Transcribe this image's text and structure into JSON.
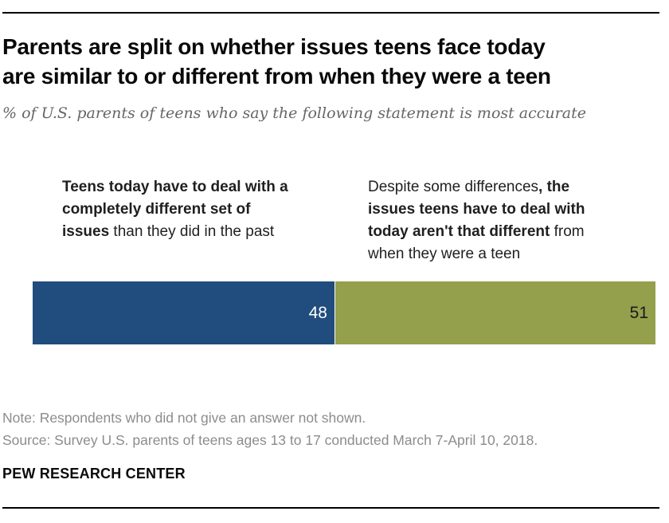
{
  "header": {
    "title_lines": [
      "Parents are split on whether issues teens face today",
      "are similar to or different from when they were a teen"
    ],
    "subtitle": "% of U.S. parents of teens who say the following statement is most accurate"
  },
  "chart_data": {
    "type": "bar",
    "variant": "horizontal-stacked-100",
    "title": "Parents are split on whether issues teens face today are similar to or different from when they were a teen",
    "subtitle": "% of U.S. parents of teens who say the following statement is most accurate",
    "categories": [
      "Teens today have to deal with a completely different set of issues than they did in the past",
      "Despite some differences, the issues teens have to deal with today aren't that different from when they were a teen"
    ],
    "values": [
      48,
      51
    ],
    "colors": [
      "#204D7D",
      "#94A04C"
    ],
    "value_label_colors": [
      "#ffffff",
      "#1a1a1a"
    ],
    "xlim": [
      0,
      99
    ],
    "grid": false,
    "legend_position": "column-headers-above-bar"
  },
  "column_headers": {
    "left_lines": [
      [
        {
          "t": "Teens today have to deal with a",
          "b": true
        }
      ],
      [
        {
          "t": "completely different set of",
          "b": true
        }
      ],
      [
        {
          "t": "issues",
          "b": true
        },
        {
          "t": " than they did in the past",
          "b": false
        }
      ]
    ],
    "right_lines": [
      [
        {
          "t": "Despite some differences",
          "b": false
        },
        {
          "t": ", the",
          "b": true
        }
      ],
      [
        {
          "t": "issues teens have to deal with",
          "b": true
        }
      ],
      [
        {
          "t": "today aren't that different",
          "b": true
        },
        {
          "t": " from",
          "b": false
        }
      ],
      [
        {
          "t": "when they were a teen",
          "b": false
        }
      ]
    ]
  },
  "footer": {
    "note": "Note: Respondents who did not give an answer not shown.",
    "source": "Source: Survey U.S. parents of teens ages 13 to 17 conducted March 7-April 10, 2018.",
    "brand": "PEW RESEARCH CENTER"
  }
}
